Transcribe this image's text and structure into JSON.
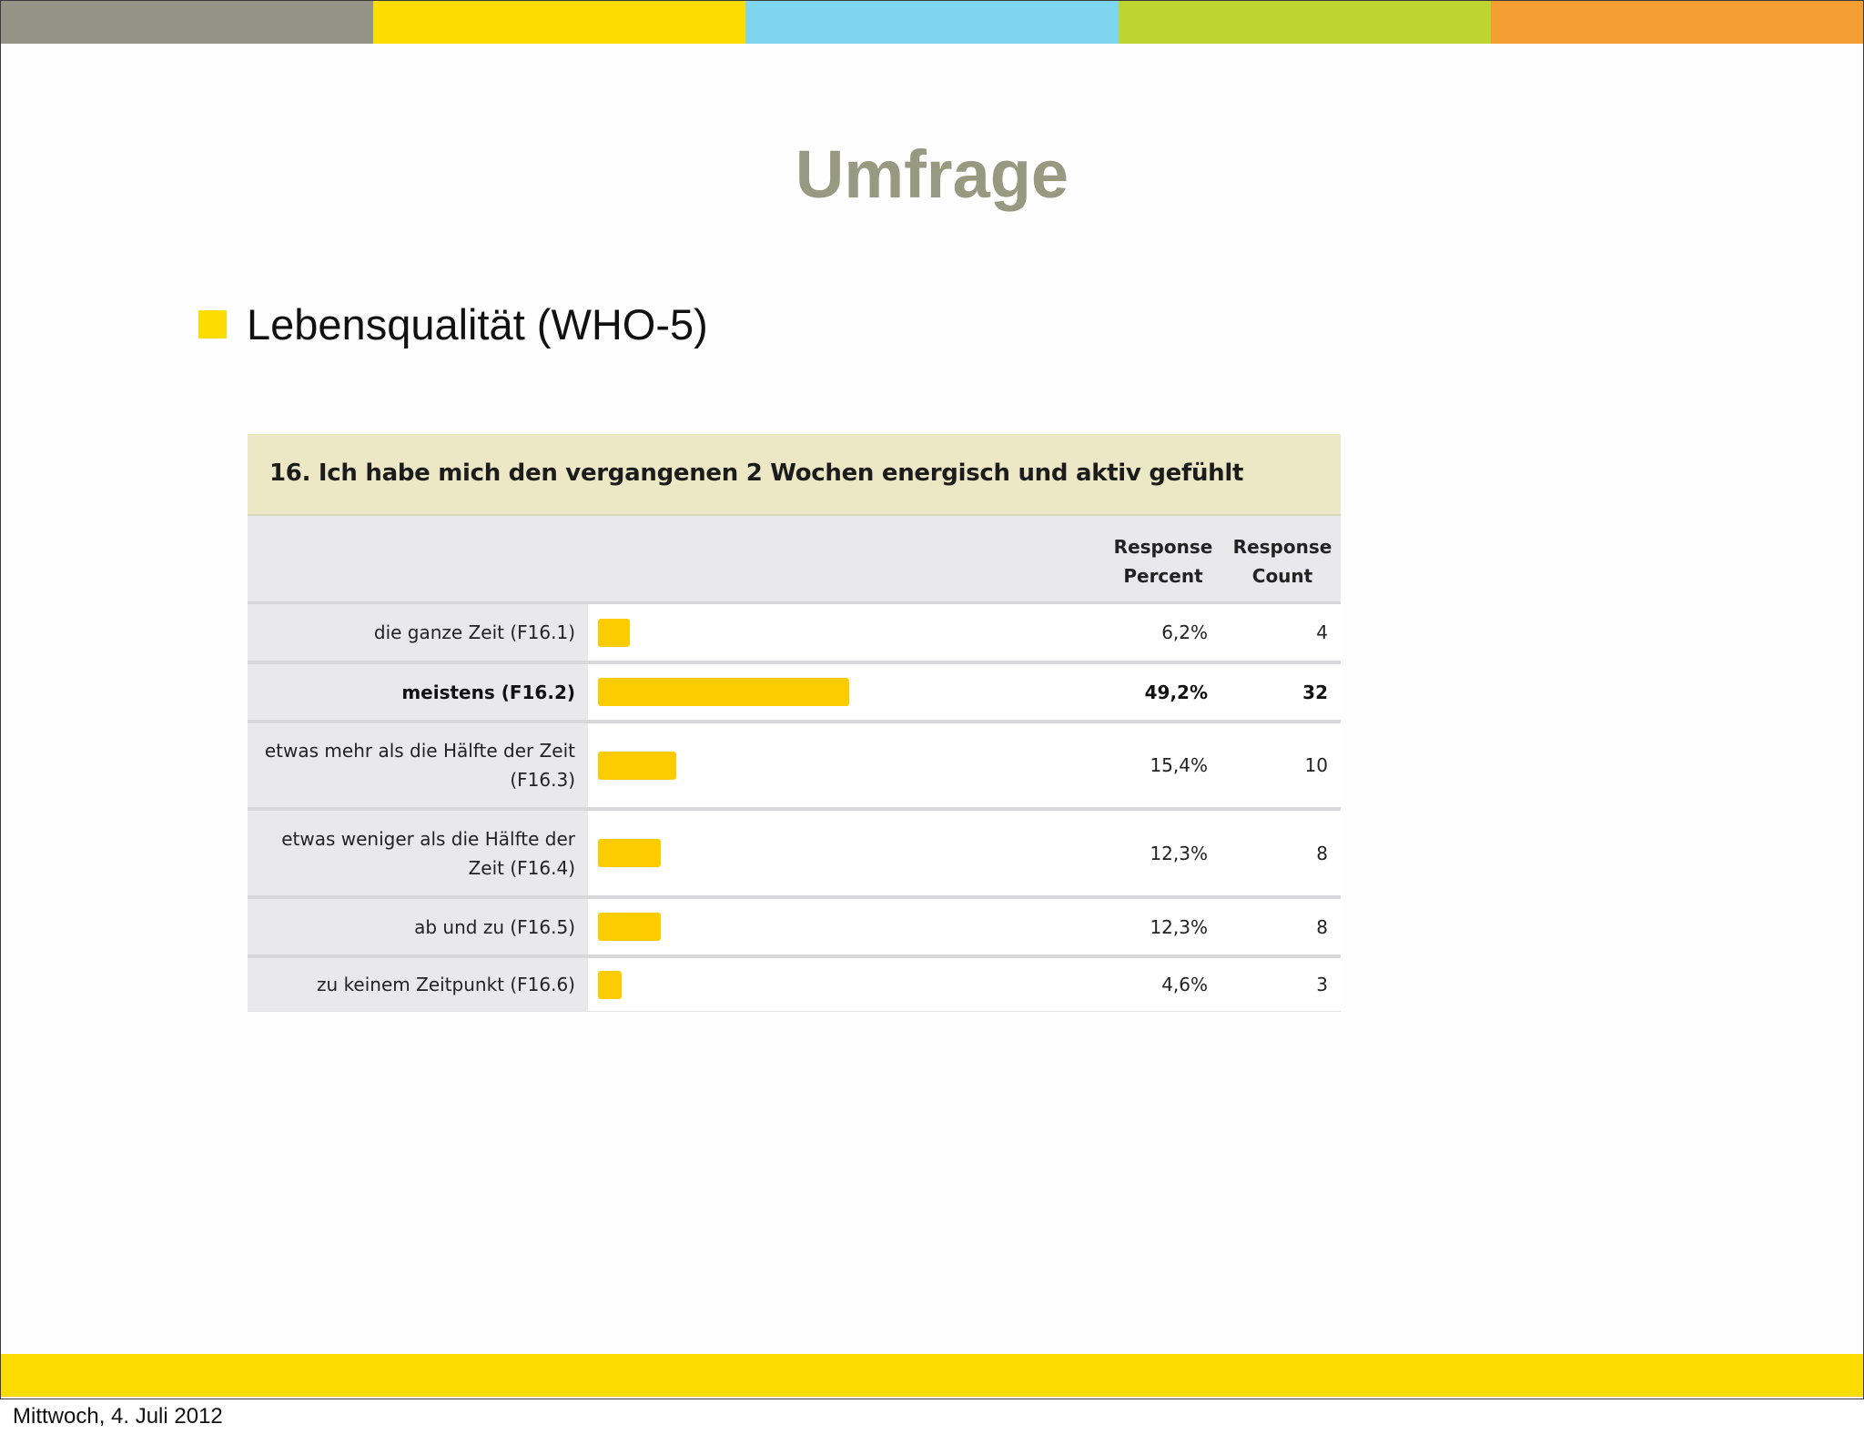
{
  "colors": {
    "stripes": [
      "#939486",
      "#fddc00",
      "#7ed5ee",
      "#bcd530",
      "#f59e32"
    ],
    "title": "#979a80",
    "accent_yellow": "#fddc00",
    "bar": "#fdcc00",
    "question_header_bg": "#ece8c6",
    "table_gray_bg": "#e9e9ec"
  },
  "slide": {
    "title": "Umfrage",
    "bullet": "Lebensqualität (WHO-5)"
  },
  "survey": {
    "question": "16. Ich habe mich den vergangenen 2 Wochen energisch und aktiv gefühlt",
    "col_percent": "Response\nPercent",
    "col_count": "Response\nCount",
    "rows": [
      {
        "label": "die ganze Zeit (F16.1)",
        "percent_text": "6,2%",
        "count": "4",
        "percent": 6.2,
        "bold": false
      },
      {
        "label": "meistens (F16.2)",
        "percent_text": "49,2%",
        "count": "32",
        "percent": 49.2,
        "bold": true
      },
      {
        "label": "etwas mehr als die Hälfte der Zeit (F16.3)",
        "percent_text": "15,4%",
        "count": "10",
        "percent": 15.4,
        "bold": false
      },
      {
        "label": "etwas weniger als die Hälfte der Zeit (F16.4)",
        "percent_text": "12,3%",
        "count": "8",
        "percent": 12.3,
        "bold": false
      },
      {
        "label": "ab und zu (F16.5)",
        "percent_text": "12,3%",
        "count": "8",
        "percent": 12.3,
        "bold": false
      },
      {
        "label": "zu keinem Zeitpunkt (F16.6)",
        "percent_text": "4,6%",
        "count": "3",
        "percent": 4.6,
        "bold": false
      }
    ]
  },
  "chart_data": {
    "type": "bar",
    "title": "16. Ich habe mich den vergangenen 2 Wochen energisch und aktiv gefühlt",
    "categories": [
      "die ganze Zeit (F16.1)",
      "meistens (F16.2)",
      "etwas mehr als die Hälfte der Zeit (F16.3)",
      "etwas weniger als die Hälfte der Zeit (F16.4)",
      "ab und zu (F16.5)",
      "zu keinem Zeitpunkt (F16.6)"
    ],
    "series": [
      {
        "name": "Response Percent",
        "values": [
          6.2,
          49.2,
          15.4,
          12.3,
          12.3,
          4.6
        ]
      },
      {
        "name": "Response Count",
        "values": [
          4,
          32,
          10,
          8,
          8,
          3
        ]
      }
    ],
    "orientation": "horizontal",
    "grid": false
  },
  "footer": {
    "date": "Mittwoch, 4. Juli 2012"
  }
}
